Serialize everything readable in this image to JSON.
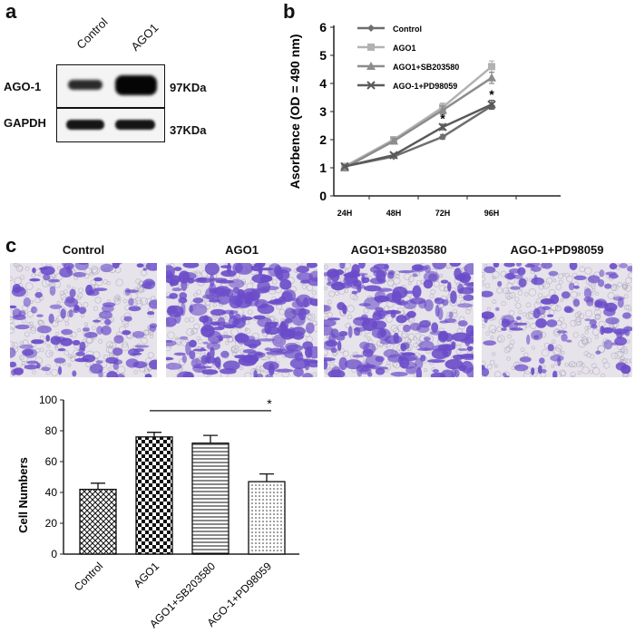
{
  "panel_a": {
    "letter": "a",
    "lanes": [
      "Control",
      "AGO1"
    ],
    "rows": [
      {
        "name": "AGO-1",
        "size": "97KDa",
        "intensities": [
          0.55,
          1.0
        ]
      },
      {
        "name": "GAPDH",
        "size": "37KDa",
        "intensities": [
          0.75,
          0.75
        ]
      }
    ]
  },
  "panel_c": {
    "letter": "c",
    "image_titles": [
      "Control",
      "AGO1",
      "AGO1+SB203580",
      "AGO-1+PD98059"
    ],
    "staining_density": [
      0.35,
      0.75,
      0.7,
      0.3
    ],
    "stain_color": "#6a4bc9"
  },
  "chart_data": [
    {
      "panel": "b",
      "type": "line",
      "ylabel": "Asorbence (OD = 490 nm)",
      "xlabel": "",
      "categories": [
        "24H",
        "48H",
        "72H",
        "96H"
      ],
      "ylim": [
        0,
        6
      ],
      "yticks": [
        "0",
        "1",
        "2",
        "3",
        "4",
        "5",
        "6"
      ],
      "legend_position": "top-left",
      "series": [
        {
          "name": "Control",
          "values": [
            1.05,
            1.4,
            2.1,
            3.2
          ],
          "errors": [
            0.05,
            0.05,
            0.08,
            0.12
          ],
          "color": "#6e6e6e",
          "marker": "diamond"
        },
        {
          "name": "AGO1",
          "values": [
            1.05,
            2.0,
            3.15,
            4.6
          ],
          "errors": [
            0.06,
            0.1,
            0.15,
            0.2
          ],
          "color": "#b2b2b2",
          "marker": "square"
        },
        {
          "name": "AGO1+SB203580",
          "values": [
            1.0,
            1.95,
            3.05,
            4.2
          ],
          "errors": [
            0.06,
            0.1,
            0.15,
            0.2
          ],
          "color": "#8c8c8c",
          "marker": "triangle"
        },
        {
          "name": "AGO-1+PD98059",
          "values": [
            1.05,
            1.45,
            2.45,
            3.25
          ],
          "errors": [
            0.05,
            0.06,
            0.1,
            0.15
          ],
          "color": "#5a5a5a",
          "marker": "x"
        }
      ],
      "annotations": [
        {
          "text": "*",
          "x": "72H",
          "y": 2.6
        },
        {
          "text": "*",
          "x": "96H",
          "y": 3.45
        }
      ]
    },
    {
      "panel": "c",
      "type": "bar",
      "ylabel": "Cell Numbers",
      "xlabel": "",
      "categories": [
        "Control",
        "AGO1",
        "AGO1+SB203580",
        "AGO-1+PD98059"
      ],
      "values": [
        42,
        76,
        72,
        47
      ],
      "errors": [
        4,
        3,
        5,
        5
      ],
      "patterns": [
        "crosshatch",
        "checker",
        "horizontal",
        "dots"
      ],
      "ylim": [
        0,
        100
      ],
      "yticks": [
        "0",
        "20",
        "40",
        "60",
        "80",
        "100"
      ],
      "significance": {
        "from": "AGO1",
        "to": "AGO-1+PD98059",
        "label": "*"
      }
    }
  ]
}
